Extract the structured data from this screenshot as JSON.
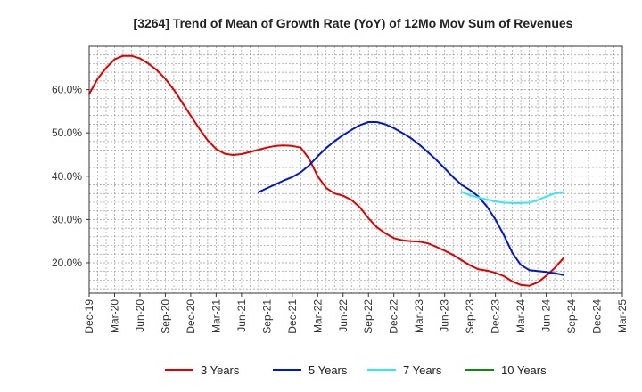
{
  "chart_data": {
    "type": "line",
    "title": "[3264]  Trend of Mean of Growth Rate (YoY) of 12Mo Mov Sum of Revenues",
    "xlabel": "",
    "ylabel": "",
    "x_ticks": [
      "Dec-19",
      "Mar-20",
      "Jun-20",
      "Sep-20",
      "Dec-20",
      "Mar-21",
      "Jun-21",
      "Sep-21",
      "Dec-21",
      "Mar-22",
      "Jun-22",
      "Sep-22",
      "Dec-22",
      "Mar-23",
      "Jun-23",
      "Sep-23",
      "Dec-23",
      "Mar-24",
      "Jun-24",
      "Sep-24",
      "Dec-24",
      "Mar-25"
    ],
    "y_ticks": [
      "20.0%",
      "30.0%",
      "40.0%",
      "50.0%",
      "60.0%"
    ],
    "y_tick_values": [
      20,
      30,
      40,
      50,
      60
    ],
    "ylim": [
      13,
      70
    ],
    "x_range_months": [
      0,
      63
    ],
    "grid": true,
    "legend_position": "bottom",
    "series": [
      {
        "name": "3 Years",
        "color": "#e00000",
        "points": [
          [
            0,
            59
          ],
          [
            1,
            62.5
          ],
          [
            2,
            65
          ],
          [
            3,
            67
          ],
          [
            4,
            67.8
          ],
          [
            5,
            67.8
          ],
          [
            6,
            67.2
          ],
          [
            7,
            66
          ],
          [
            8,
            64.5
          ],
          [
            9,
            62.5
          ],
          [
            10,
            60
          ],
          [
            11,
            57
          ],
          [
            12,
            54
          ],
          [
            13,
            51
          ],
          [
            14,
            48.3
          ],
          [
            15,
            46.3
          ],
          [
            16,
            45.2
          ],
          [
            17,
            44.9
          ],
          [
            18,
            45.1
          ],
          [
            19,
            45.6
          ],
          [
            20,
            46.1
          ],
          [
            21,
            46.6
          ],
          [
            22,
            47
          ],
          [
            23,
            47.1
          ],
          [
            24,
            47
          ],
          [
            25,
            46.6
          ],
          [
            26,
            44
          ],
          [
            27,
            40
          ],
          [
            28,
            37.3
          ],
          [
            29,
            36
          ],
          [
            30,
            35.5
          ],
          [
            31,
            34.5
          ],
          [
            32,
            32.8
          ],
          [
            33,
            30.3
          ],
          [
            34,
            28.2
          ],
          [
            35,
            26.8
          ],
          [
            36,
            25.7
          ],
          [
            37,
            25.2
          ],
          [
            38,
            25
          ],
          [
            39,
            24.9
          ],
          [
            40,
            24.5
          ],
          [
            41,
            23.7
          ],
          [
            42,
            22.8
          ],
          [
            43,
            21.8
          ],
          [
            44,
            20.6
          ],
          [
            45,
            19.4
          ],
          [
            46,
            18.5
          ],
          [
            47,
            18.2
          ],
          [
            48,
            17.7
          ],
          [
            49,
            16.9
          ],
          [
            50,
            15.7
          ],
          [
            51,
            14.9
          ],
          [
            52,
            14.7
          ],
          [
            53,
            15.5
          ],
          [
            54,
            17
          ],
          [
            55,
            18.8
          ],
          [
            56,
            21
          ]
        ]
      },
      {
        "name": "5 Years",
        "color": "#0018c8",
        "points": [
          [
            20,
            36.3
          ],
          [
            21,
            37.2
          ],
          [
            22,
            38.1
          ],
          [
            23,
            39
          ],
          [
            24,
            39.8
          ],
          [
            25,
            40.9
          ],
          [
            26,
            42.5
          ],
          [
            27,
            44.6
          ],
          [
            28,
            46.5
          ],
          [
            29,
            48.1
          ],
          [
            30,
            49.5
          ],
          [
            31,
            50.7
          ],
          [
            32,
            51.8
          ],
          [
            33,
            52.5
          ],
          [
            34,
            52.5
          ],
          [
            35,
            52
          ],
          [
            36,
            51.1
          ],
          [
            37,
            50
          ],
          [
            38,
            48.8
          ],
          [
            39,
            47.3
          ],
          [
            40,
            45.6
          ],
          [
            41,
            43.8
          ],
          [
            42,
            41.8
          ],
          [
            43,
            39.8
          ],
          [
            44,
            38
          ],
          [
            45,
            36.8
          ],
          [
            46,
            35.3
          ],
          [
            47,
            33
          ],
          [
            48,
            30
          ],
          [
            49,
            26.4
          ],
          [
            50,
            22.3
          ],
          [
            51,
            19.5
          ],
          [
            52,
            18.3
          ],
          [
            53,
            18.1
          ],
          [
            54,
            17.9
          ],
          [
            55,
            17.6
          ],
          [
            56,
            17.2
          ]
        ]
      },
      {
        "name": "7 Years",
        "color": "#33e8f0",
        "points": [
          [
            44,
            36.4
          ],
          [
            45,
            35.6
          ],
          [
            46,
            35.1
          ],
          [
            47,
            34.6
          ],
          [
            48,
            34.2
          ],
          [
            49,
            33.9
          ],
          [
            50,
            33.8
          ],
          [
            51,
            33.8
          ],
          [
            52,
            33.9
          ],
          [
            53,
            34.5
          ],
          [
            54,
            35.3
          ],
          [
            55,
            36
          ],
          [
            56,
            36.3
          ]
        ]
      },
      {
        "name": "10 Years",
        "color": "#108a10",
        "points": []
      }
    ]
  }
}
